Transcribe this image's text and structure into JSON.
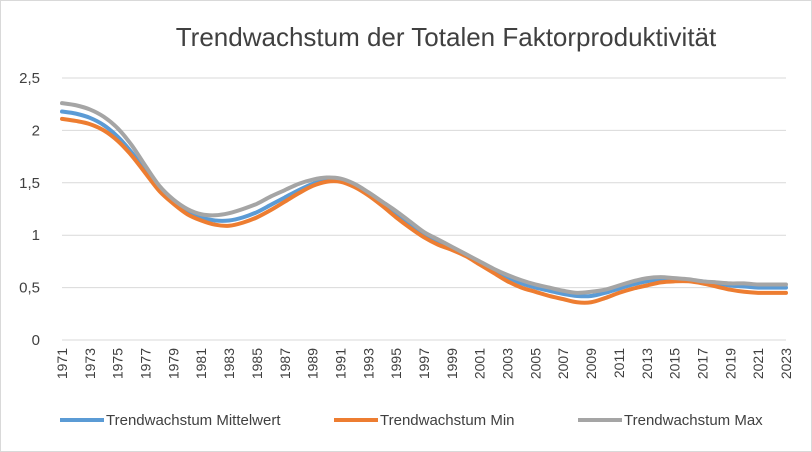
{
  "chart_data": {
    "type": "line",
    "title": "Trendwachstum der Totalen Faktorproduktivität",
    "xlabel": "",
    "ylabel": "",
    "ylim": [
      0,
      2.5
    ],
    "y_ticks": [
      "0",
      "0,5",
      "1",
      "1,5",
      "2",
      "2,5"
    ],
    "grid": "horizontal",
    "legend_position": "bottom",
    "x": [
      1971,
      1972,
      1973,
      1974,
      1975,
      1976,
      1977,
      1978,
      1979,
      1980,
      1981,
      1982,
      1983,
      1984,
      1985,
      1986,
      1987,
      1988,
      1989,
      1990,
      1991,
      1992,
      1993,
      1994,
      1995,
      1996,
      1997,
      1998,
      1999,
      2000,
      2001,
      2002,
      2003,
      2004,
      2005,
      2006,
      2007,
      2008,
      2009,
      2010,
      2011,
      2012,
      2013,
      2014,
      2015,
      2016,
      2017,
      2018,
      2019,
      2020,
      2021,
      2022,
      2023
    ],
    "x_tick_labels": [
      "1971",
      "1973",
      "1975",
      "1977",
      "1979",
      "1981",
      "1983",
      "1985",
      "1987",
      "1989",
      "1991",
      "1993",
      "1995",
      "1997",
      "1999",
      "2001",
      "2003",
      "2005",
      "2007",
      "2009",
      "2011",
      "2013",
      "2015",
      "2017",
      "2019",
      "2021",
      "2023"
    ],
    "series": [
      {
        "name": "Trendwachstum Mittelwert",
        "color": "#5b9bd5",
        "values": [
          2.18,
          2.16,
          2.12,
          2.05,
          1.94,
          1.79,
          1.61,
          1.44,
          1.32,
          1.23,
          1.17,
          1.14,
          1.14,
          1.17,
          1.22,
          1.29,
          1.36,
          1.43,
          1.49,
          1.53,
          1.53,
          1.48,
          1.4,
          1.31,
          1.21,
          1.11,
          1.01,
          0.94,
          0.88,
          0.81,
          0.74,
          0.67,
          0.6,
          0.54,
          0.5,
          0.47,
          0.44,
          0.42,
          0.42,
          0.45,
          0.49,
          0.53,
          0.56,
          0.58,
          0.58,
          0.57,
          0.56,
          0.54,
          0.52,
          0.51,
          0.5,
          0.5,
          0.5
        ]
      },
      {
        "name": "Trendwachstum Min",
        "color": "#ed7d31",
        "values": [
          2.11,
          2.09,
          2.06,
          2.0,
          1.9,
          1.76,
          1.59,
          1.42,
          1.3,
          1.2,
          1.14,
          1.1,
          1.09,
          1.12,
          1.17,
          1.24,
          1.32,
          1.4,
          1.47,
          1.51,
          1.51,
          1.46,
          1.38,
          1.28,
          1.17,
          1.07,
          0.98,
          0.91,
          0.86,
          0.8,
          0.72,
          0.64,
          0.56,
          0.5,
          0.46,
          0.42,
          0.39,
          0.36,
          0.36,
          0.4,
          0.45,
          0.49,
          0.52,
          0.55,
          0.56,
          0.56,
          0.54,
          0.51,
          0.48,
          0.46,
          0.45,
          0.45,
          0.45
        ]
      },
      {
        "name": "Trendwachstum Max",
        "color": "#a5a5a5",
        "values": [
          2.26,
          2.24,
          2.2,
          2.13,
          2.02,
          1.86,
          1.66,
          1.47,
          1.34,
          1.25,
          1.2,
          1.19,
          1.21,
          1.25,
          1.3,
          1.37,
          1.43,
          1.49,
          1.53,
          1.55,
          1.54,
          1.49,
          1.41,
          1.32,
          1.23,
          1.13,
          1.03,
          0.96,
          0.89,
          0.82,
          0.75,
          0.68,
          0.62,
          0.57,
          0.53,
          0.5,
          0.47,
          0.45,
          0.46,
          0.48,
          0.52,
          0.56,
          0.59,
          0.6,
          0.59,
          0.58,
          0.56,
          0.55,
          0.54,
          0.54,
          0.53,
          0.53,
          0.53
        ]
      }
    ]
  }
}
